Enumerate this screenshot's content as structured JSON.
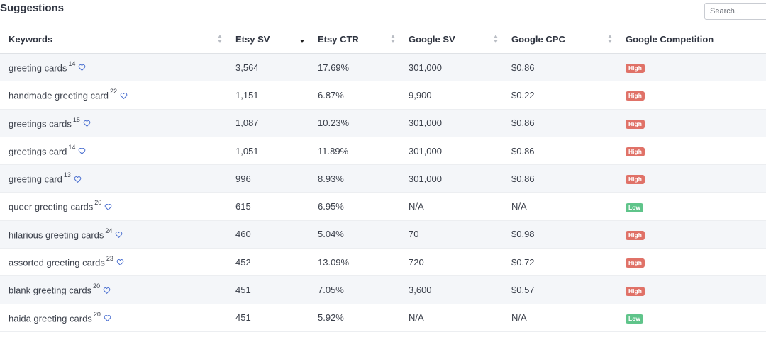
{
  "header": {
    "title": "Suggestions",
    "search_placeholder": "Search..."
  },
  "columns": [
    "Keywords",
    "Etsy SV",
    "Etsy CTR",
    "Google SV",
    "Google CPC",
    "Google Competition"
  ],
  "sort": {
    "column": "Etsy SV",
    "direction": "desc"
  },
  "colors": {
    "high": "#e07268",
    "low": "#5fc48a",
    "heart": "#4a6fd0"
  },
  "rows": [
    {
      "keyword": "greeting cards",
      "count": "14",
      "etsy_sv": "3,564",
      "etsy_ctr": "17.69%",
      "google_sv": "301,000",
      "google_cpc": "$0.86",
      "competition": "High"
    },
    {
      "keyword": "handmade greeting card",
      "count": "22",
      "etsy_sv": "1,151",
      "etsy_ctr": "6.87%",
      "google_sv": "9,900",
      "google_cpc": "$0.22",
      "competition": "High"
    },
    {
      "keyword": "greetings cards",
      "count": "15",
      "etsy_sv": "1,087",
      "etsy_ctr": "10.23%",
      "google_sv": "301,000",
      "google_cpc": "$0.86",
      "competition": "High"
    },
    {
      "keyword": "greetings card",
      "count": "14",
      "etsy_sv": "1,051",
      "etsy_ctr": "11.89%",
      "google_sv": "301,000",
      "google_cpc": "$0.86",
      "competition": "High"
    },
    {
      "keyword": "greeting card",
      "count": "13",
      "etsy_sv": "996",
      "etsy_ctr": "8.93%",
      "google_sv": "301,000",
      "google_cpc": "$0.86",
      "competition": "High"
    },
    {
      "keyword": "queer greeting cards",
      "count": "20",
      "etsy_sv": "615",
      "etsy_ctr": "6.95%",
      "google_sv": "N/A",
      "google_cpc": "N/A",
      "competition": "Low"
    },
    {
      "keyword": "hilarious greeting cards",
      "count": "24",
      "etsy_sv": "460",
      "etsy_ctr": "5.04%",
      "google_sv": "70",
      "google_cpc": "$0.98",
      "competition": "High"
    },
    {
      "keyword": "assorted greeting cards",
      "count": "23",
      "etsy_sv": "452",
      "etsy_ctr": "13.09%",
      "google_sv": "720",
      "google_cpc": "$0.72",
      "competition": "High"
    },
    {
      "keyword": "blank greeting cards",
      "count": "20",
      "etsy_sv": "451",
      "etsy_ctr": "7.05%",
      "google_sv": "3,600",
      "google_cpc": "$0.57",
      "competition": "High"
    },
    {
      "keyword": "haida greeting cards",
      "count": "20",
      "etsy_sv": "451",
      "etsy_ctr": "5.92%",
      "google_sv": "N/A",
      "google_cpc": "N/A",
      "competition": "Low"
    }
  ]
}
